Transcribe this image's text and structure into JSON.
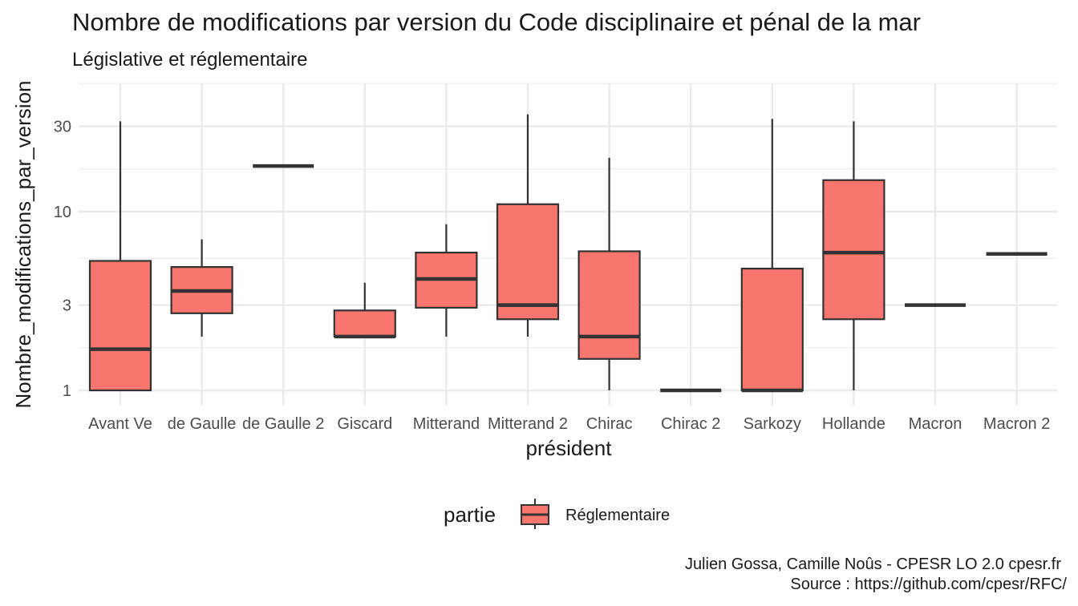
{
  "chart_data": {
    "type": "boxplot",
    "title": "Nombre de modifications par version du Code disciplinaire et pénal de la mar",
    "subtitle": "Législative et réglementaire",
    "xlabel": "président",
    "ylabel": "Nombre_modifications_par_version",
    "y_scale": "log",
    "yticks": [
      1,
      3,
      10,
      30
    ],
    "ytick_labels": [
      "1",
      "3",
      "10",
      "30"
    ],
    "grid": true,
    "legend": {
      "title": "partie",
      "position": "bottom",
      "entries": [
        "Réglementaire"
      ]
    },
    "fill_color": "#F8766D",
    "stroke_color": "#333333",
    "categories": [
      "Avant Ve",
      "de Gaulle",
      "de Gaulle 2",
      "Giscard",
      "Mitterand",
      "Mitterand 2",
      "Chirac",
      "Chirac 2",
      "Sarkozy",
      "Hollande",
      "Macron",
      "Macron 2"
    ],
    "series": [
      {
        "name": "Réglementaire",
        "boxes": [
          {
            "category": "Avant Ve",
            "min": 1,
            "q1": 1,
            "median": 1.7,
            "q3": 5.3,
            "max": 32
          },
          {
            "category": "de Gaulle",
            "min": 2,
            "q1": 2.7,
            "median": 3.6,
            "q3": 4.9,
            "max": 7
          },
          {
            "category": "de Gaulle 2",
            "min": 18,
            "q1": 18,
            "median": 18,
            "q3": 18,
            "max": 18
          },
          {
            "category": "Giscard",
            "min": 2,
            "q1": 2,
            "median": 2,
            "q3": 2.8,
            "max": 4
          },
          {
            "category": "Mitterand",
            "min": 2,
            "q1": 2.9,
            "median": 4.2,
            "q3": 5.9,
            "max": 8.5
          },
          {
            "category": "Mitterand 2",
            "min": 2,
            "q1": 2.5,
            "median": 3,
            "q3": 11,
            "max": 35
          },
          {
            "category": "Chirac",
            "min": 1,
            "q1": 1.5,
            "median": 2,
            "q3": 6,
            "max": 20
          },
          {
            "category": "Chirac 2",
            "min": 1,
            "q1": 1,
            "median": 1,
            "q3": 1,
            "max": 1
          },
          {
            "category": "Sarkozy",
            "min": 1,
            "q1": 1,
            "median": 1,
            "q3": 4.8,
            "max": 33
          },
          {
            "category": "Hollande",
            "min": 1,
            "q1": 2.5,
            "median": 5.9,
            "q3": 15,
            "max": 32
          },
          {
            "category": "Macron",
            "min": 3,
            "q1": 3,
            "median": 3,
            "q3": 3,
            "max": 3
          },
          {
            "category": "Macron 2",
            "min": 5.8,
            "q1": 5.8,
            "median": 5.8,
            "q3": 5.8,
            "max": 5.8
          }
        ]
      }
    ],
    "caption": [
      "Julien Gossa, Camille Noûs - CPESR LO 2.0 cpesr.fr",
      "Source : https://github.com/cpesr/RFC/"
    ]
  }
}
